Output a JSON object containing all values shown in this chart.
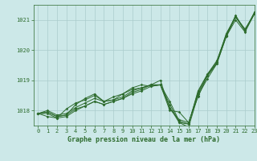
{
  "title": "Graphe pression niveau de la mer (hPa)",
  "background_color": "#cce8e8",
  "plot_bg_color": "#cce8e8",
  "grid_color": "#aacccc",
  "line_color": "#2d6b2d",
  "ylim": [
    1017.5,
    1021.5
  ],
  "xlim": [
    -0.5,
    23
  ],
  "yticks": [
    1018,
    1019,
    1020,
    1021
  ],
  "xticks": [
    0,
    1,
    2,
    3,
    4,
    5,
    6,
    7,
    8,
    9,
    10,
    11,
    12,
    13,
    14,
    15,
    16,
    17,
    18,
    19,
    20,
    21,
    22,
    23
  ],
  "series": [
    [
      1017.9,
      1017.95,
      1017.8,
      1017.85,
      1018.05,
      1018.15,
      1018.3,
      1018.2,
      1018.3,
      1018.4,
      1018.55,
      1018.65,
      1018.8,
      1018.85,
      1018.0,
      1017.95,
      1017.6,
      1018.45,
      1019.15,
      1019.55,
      1020.45,
      1021.1,
      1020.7,
      1021.2
    ],
    [
      1017.9,
      1017.95,
      1017.8,
      1017.85,
      1018.2,
      1018.4,
      1018.55,
      1018.3,
      1018.35,
      1018.55,
      1018.75,
      1018.85,
      1018.8,
      1018.85,
      1018.2,
      1017.6,
      1017.55,
      1018.6,
      1019.2,
      1019.65,
      1020.5,
      1021.15,
      1020.65,
      1021.25
    ],
    [
      1017.9,
      1017.8,
      1017.75,
      1018.05,
      1018.25,
      1018.35,
      1018.5,
      1018.3,
      1018.45,
      1018.55,
      1018.7,
      1018.75,
      1018.85,
      1018.85,
      1018.3,
      1017.65,
      1017.55,
      1018.65,
      1019.2,
      1019.6,
      1020.55,
      1021.1,
      1020.65,
      1021.2
    ],
    [
      1017.9,
      1018.0,
      1017.85,
      1017.9,
      1018.1,
      1018.25,
      1018.4,
      1018.3,
      1018.35,
      1018.45,
      1018.65,
      1018.75,
      1018.85,
      1019.0,
      1018.05,
      1017.7,
      1017.6,
      1018.55,
      1019.15,
      1019.6,
      1020.5,
      1021.1,
      1020.65,
      1021.25
    ],
    [
      1017.9,
      1017.9,
      1017.75,
      1017.8,
      1018.0,
      1018.15,
      1018.3,
      1018.2,
      1018.3,
      1018.4,
      1018.6,
      1018.7,
      1018.85,
      1018.85,
      1018.1,
      1017.6,
      1017.45,
      1018.5,
      1019.05,
      1019.55,
      1020.45,
      1021.0,
      1020.6,
      1021.2
    ]
  ]
}
